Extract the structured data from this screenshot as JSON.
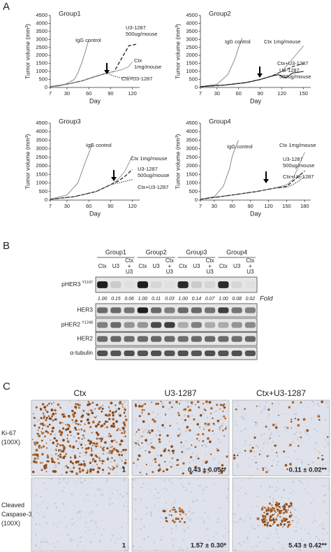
{
  "panel_labels": [
    "A",
    "B",
    "C"
  ],
  "chart_data": [
    {
      "type": "line",
      "title": "Group1",
      "xlabel": "Day",
      "ylabel": "Tumor volume (mm³)",
      "xlim": [
        7,
        130
      ],
      "xticks": [
        7,
        30,
        60,
        90,
        120
      ],
      "ylim": [
        0,
        4500
      ],
      "yticks": [
        0,
        500,
        1000,
        1500,
        2000,
        2500,
        3000,
        3500,
        4000,
        4500
      ],
      "series": [
        {
          "name": [
            "IgG control"
          ],
          "color": "#8a8a8a",
          "style": "solid",
          "x": [
            7,
            20,
            30,
            40,
            45,
            50,
            55,
            60
          ],
          "values": [
            50,
            100,
            250,
            500,
            900,
            1500,
            2200,
            3000
          ]
        },
        {
          "name": [
            "U3-1287",
            "500ug/mouse"
          ],
          "color": "#222222",
          "style": "dashed",
          "x": [
            7,
            30,
            50,
            70,
            85,
            95,
            105,
            115,
            125
          ],
          "values": [
            50,
            200,
            400,
            700,
            900,
            1000,
            1800,
            2600,
            2700
          ]
        },
        {
          "name": [
            "Ctx",
            "1mg/mouse"
          ],
          "color": "#9a9a9a",
          "style": "solid",
          "x": [
            7,
            30,
            50,
            70,
            85,
            95,
            105,
            115,
            120
          ],
          "values": [
            50,
            200,
            400,
            700,
            900,
            1000,
            1100,
            1300,
            1600
          ]
        },
        {
          "name": [
            "Ctx+U3-1287"
          ],
          "color": "#555555",
          "style": "dotted",
          "x": [
            7,
            30,
            50,
            70,
            85,
            95,
            105,
            115,
            125
          ],
          "values": [
            50,
            200,
            400,
            700,
            900,
            700,
            600,
            650,
            600
          ]
        }
      ]
    },
    {
      "type": "line",
      "title": "Group2",
      "xlabel": "Day",
      "ylabel": "Tumor volume (mm³)",
      "xlim": [
        7,
        160
      ],
      "xticks": [
        7,
        30,
        60,
        90,
        120,
        150
      ],
      "ylim": [
        0,
        4500
      ],
      "yticks": [
        0,
        500,
        1000,
        1500,
        2000,
        2500,
        3000,
        3500,
        4000,
        4500
      ],
      "series": [
        {
          "name": [
            "IgG control"
          ],
          "color": "#8a8a8a",
          "style": "solid",
          "x": [
            7,
            30,
            45,
            55,
            60,
            65
          ],
          "values": [
            50,
            200,
            800,
            1800,
            2500,
            3100
          ]
        },
        {
          "name": [
            "Ctx 1mg/mouse"
          ],
          "color": "#9a9a9a",
          "style": "solid",
          "x": [
            7,
            40,
            70,
            90,
            105,
            120,
            135,
            150
          ],
          "values": [
            50,
            150,
            300,
            500,
            700,
            1000,
            1800,
            2600
          ]
        },
        {
          "name": [
            "U3-1287",
            "500ug/mouse"
          ],
          "color": "#444444",
          "style": "dashed",
          "x": [
            7,
            40,
            70,
            90,
            105,
            120,
            135,
            150
          ],
          "values": [
            50,
            150,
            300,
            500,
            700,
            1000,
            1300,
            1500
          ]
        },
        {
          "name": [
            "Ctx+U3-1287"
          ],
          "color": "#111111",
          "style": "solid",
          "x": [
            7,
            40,
            70,
            90,
            105,
            115,
            125,
            135,
            150
          ],
          "values": [
            50,
            150,
            300,
            500,
            700,
            800,
            600,
            900,
            1000
          ]
        }
      ]
    },
    {
      "type": "line",
      "title": "Group3",
      "xlabel": "Day",
      "ylabel": "Tumor volume (mm³)",
      "xlim": [
        7,
        130
      ],
      "xticks": [
        7,
        30,
        60,
        90,
        120
      ],
      "ylim": [
        0,
        4500
      ],
      "yticks": [
        0,
        500,
        1000,
        1500,
        2000,
        2500,
        3000,
        3500,
        4000,
        4500
      ],
      "series": [
        {
          "name": [
            "IgG control"
          ],
          "color": "#8a8a8a",
          "style": "solid",
          "x": [
            7,
            30,
            45,
            55,
            65
          ],
          "values": [
            50,
            300,
            1000,
            2200,
            3300
          ]
        },
        {
          "name": [
            "Ctx 1mg/mouse"
          ],
          "color": "#9a9a9a",
          "style": "solid",
          "x": [
            7,
            40,
            70,
            90,
            100,
            110,
            120
          ],
          "values": [
            50,
            200,
            500,
            900,
            1200,
            1700,
            2600
          ]
        },
        {
          "name": [
            "U3-1287",
            "500ug/mouse"
          ],
          "color": "#222222",
          "style": "dashed",
          "x": [
            7,
            40,
            70,
            90,
            100,
            110,
            120
          ],
          "values": [
            50,
            200,
            500,
            900,
            1100,
            1400,
            1800
          ]
        },
        {
          "name": [
            "Ctx+U3-1287"
          ],
          "color": "#555555",
          "style": "dotted",
          "x": [
            7,
            40,
            70,
            90,
            100,
            110,
            120
          ],
          "values": [
            50,
            200,
            500,
            900,
            1000,
            1100,
            1200
          ]
        }
      ]
    },
    {
      "type": "line",
      "title": "Group4",
      "xlabel": "Day",
      "ylabel": "Tumor volume (mm³)",
      "xlim": [
        7,
        190
      ],
      "xticks": [
        7,
        30,
        60,
        90,
        120,
        150,
        180
      ],
      "ylim": [
        0,
        4500
      ],
      "yticks": [
        0,
        500,
        1000,
        1500,
        2000,
        2500,
        3000,
        3500,
        4000,
        4500
      ],
      "series": [
        {
          "name": [
            "IgG control"
          ],
          "color": "#8a8a8a",
          "style": "solid",
          "x": [
            7,
            30,
            45,
            55,
            60,
            70
          ],
          "values": [
            50,
            200,
            800,
            1800,
            2600,
            3500
          ]
        },
        {
          "name": [
            "Ctx 1mg/mouse"
          ],
          "color": "#9a9a9a",
          "style": "solid",
          "x": [
            7,
            60,
            100,
            130,
            150,
            160,
            170,
            180
          ],
          "values": [
            50,
            300,
            500,
            700,
            900,
            1200,
            2000,
            2800
          ]
        },
        {
          "name": [
            "U3-1287",
            "500ug/mouse"
          ],
          "color": "#222222",
          "style": "dashed",
          "x": [
            7,
            60,
            100,
            130,
            150,
            160,
            170,
            180
          ],
          "values": [
            50,
            300,
            500,
            700,
            800,
            1100,
            1400,
            1700
          ]
        },
        {
          "name": [
            "Ctx+U3-1287"
          ],
          "color": "#555555",
          "style": "dotted",
          "x": [
            7,
            60,
            100,
            130,
            150,
            160,
            170,
            180
          ],
          "values": [
            50,
            300,
            500,
            700,
            750,
            900,
            1100,
            1400
          ]
        }
      ]
    }
  ],
  "blot": {
    "groups": [
      "Group1",
      "Group2",
      "Group3",
      "Group4"
    ],
    "lanes": [
      [
        "Ctx"
      ],
      [
        "U3"
      ],
      [
        "Ctx",
        "+",
        "U3"
      ]
    ],
    "rows": [
      {
        "name": "pHER3",
        "site": "Y1197"
      },
      {
        "name": "HER3"
      },
      {
        "name": "pHER2",
        "site": "Y1248"
      },
      {
        "name": "HER2"
      },
      {
        "name": "α-tubulin"
      }
    ],
    "fold": [
      "1.00",
      "0.15",
      "0.06",
      "1.00",
      "0.11",
      "0.03",
      "1.00",
      "0.14",
      "0.07",
      "1.00",
      "0.08",
      "0.02"
    ],
    "fold_label": "Fold"
  },
  "ihc": {
    "columns": [
      "Ctx",
      "U3-1287",
      "Ctx+U3-1287"
    ],
    "rows": [
      {
        "label": [
          "Ki-67",
          "(100X)"
        ],
        "scores": [
          "1",
          "0.43 ± 0.05**",
          "0.11 ± 0.02**"
        ]
      },
      {
        "label": [
          "Cleaved",
          "Caspase-3",
          "(100X)"
        ],
        "scores": [
          "1",
          "1.57 ± 0.30*",
          "5.43 ± 0.42**"
        ]
      }
    ]
  }
}
